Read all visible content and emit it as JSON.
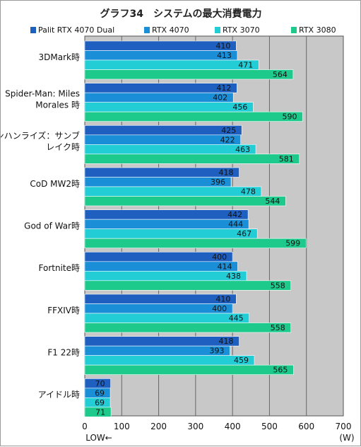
{
  "chart_data": {
    "type": "bar",
    "orientation": "horizontal",
    "title": "グラフ34　システムの最大消費電力",
    "categories": [
      [
        "3DMark時"
      ],
      [
        "Spider-Man: Miles",
        "Morales 時"
      ],
      [
        "モンハンライズ：サンブ",
        "レイク時"
      ],
      [
        "CoD MW2時"
      ],
      [
        "God of War時"
      ],
      [
        "Fortnite時"
      ],
      [
        "FFXIV時"
      ],
      [
        "F1 22時"
      ],
      [
        "アイドル時"
      ]
    ],
    "series": [
      {
        "name": "Palit RTX 4070 Dual",
        "color": "#1f5fbf",
        "values": [
          410,
          412,
          425,
          418,
          442,
          400,
          410,
          418,
          70
        ]
      },
      {
        "name": "RTX 4070",
        "color": "#1a8fd8",
        "values": [
          413,
          402,
          422,
          396,
          444,
          414,
          400,
          393,
          69
        ]
      },
      {
        "name": "RTX 3070",
        "color": "#23cdd6",
        "values": [
          471,
          456,
          463,
          478,
          467,
          438,
          445,
          459,
          69
        ]
      },
      {
        "name": "RTX 3080",
        "color": "#1ec98c",
        "values": [
          564,
          590,
          581,
          544,
          599,
          558,
          558,
          565,
          71
        ]
      }
    ],
    "xlim": [
      0,
      700
    ],
    "xticks": [
      0,
      100,
      200,
      300,
      400,
      500,
      600,
      700
    ],
    "xunit": "(W)",
    "direction_note": "LOW←",
    "grid": true,
    "legend_position": "top",
    "plot_background": "#c8c8c8"
  }
}
